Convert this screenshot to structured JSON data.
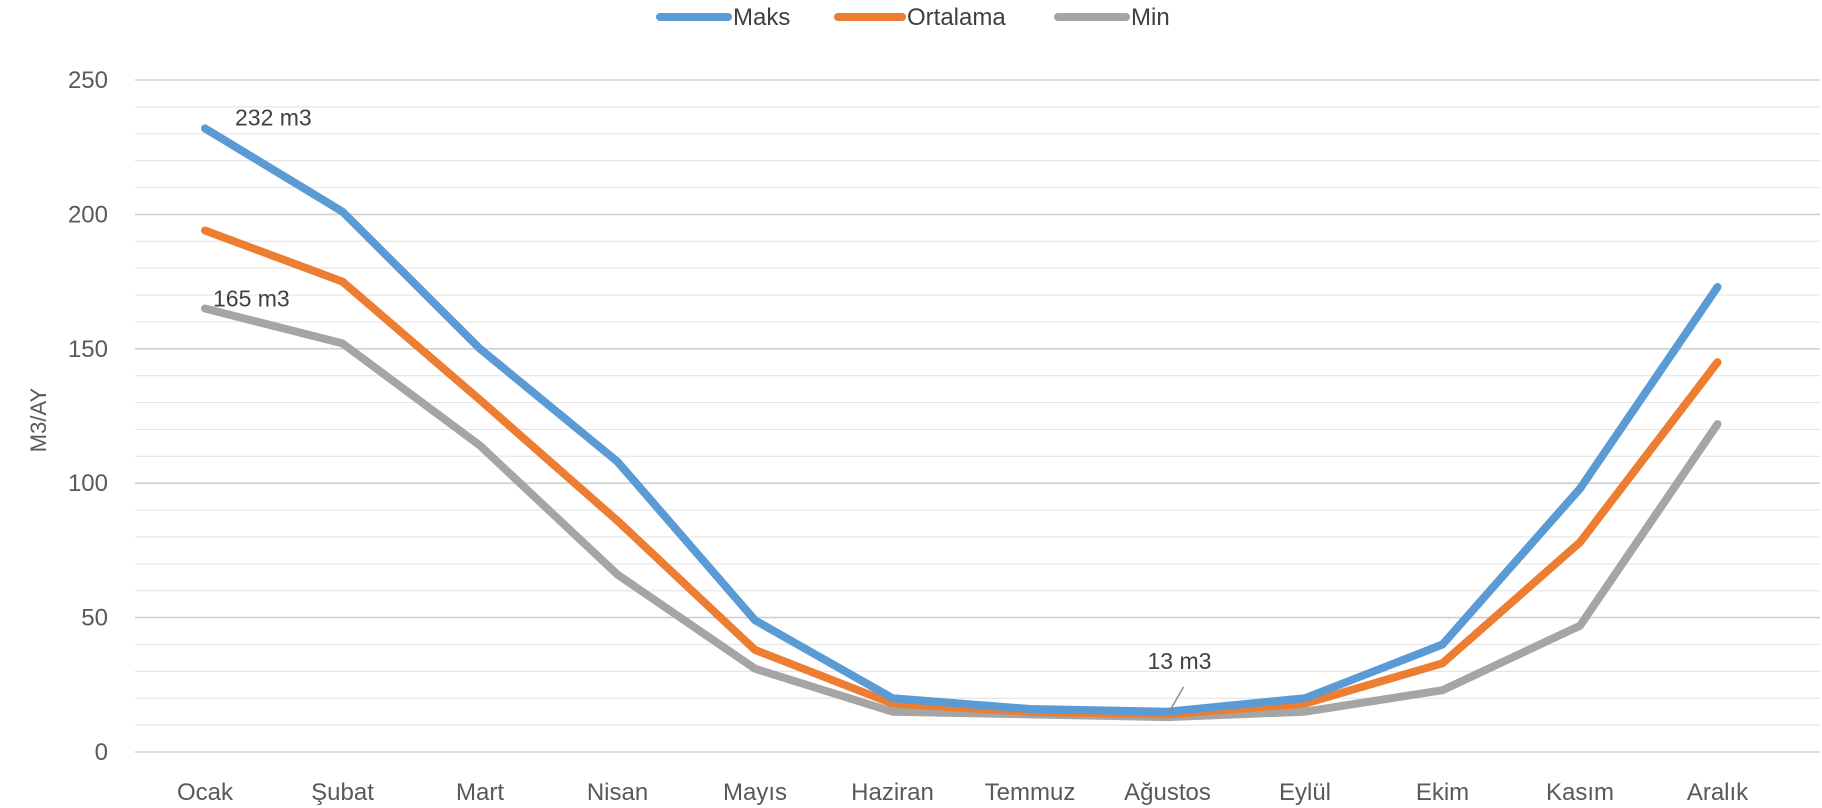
{
  "chart_data": {
    "type": "line",
    "title": "",
    "xlabel": "",
    "ylabel": "M3/AY",
    "ylim": [
      0,
      250
    ],
    "yticks": [
      0,
      50,
      100,
      150,
      200,
      250
    ],
    "grid": true,
    "legend_position": "top-center",
    "categories": [
      "Ocak",
      "Şubat",
      "Mart",
      "Nisan",
      "Mayıs",
      "Haziran",
      "Temmuz",
      "Ağustos",
      "Eylül",
      "Ekim",
      "Kasım",
      "Aralık"
    ],
    "series": [
      {
        "name": "Maks",
        "color": "#5B9BD5",
        "values": [
          232,
          201,
          150,
          108,
          49,
          20,
          16,
          15,
          20,
          40,
          98,
          173
        ]
      },
      {
        "name": "Ortalama",
        "color": "#ED7D31",
        "values": [
          194,
          175,
          131,
          86,
          38,
          18,
          15,
          14,
          18,
          33,
          78,
          145
        ]
      },
      {
        "name": "Min",
        "color": "#A5A5A5",
        "values": [
          165,
          152,
          114,
          66,
          31,
          15,
          14,
          13,
          15,
          23,
          47,
          122
        ]
      }
    ],
    "annotations": [
      {
        "text": "232 m3",
        "series": "Maks",
        "category": "Ocak"
      },
      {
        "text": "165 m3",
        "series": "Min",
        "category": "Ocak"
      },
      {
        "text": "13 m3",
        "series": "Min",
        "category": "Ağustos"
      }
    ]
  }
}
